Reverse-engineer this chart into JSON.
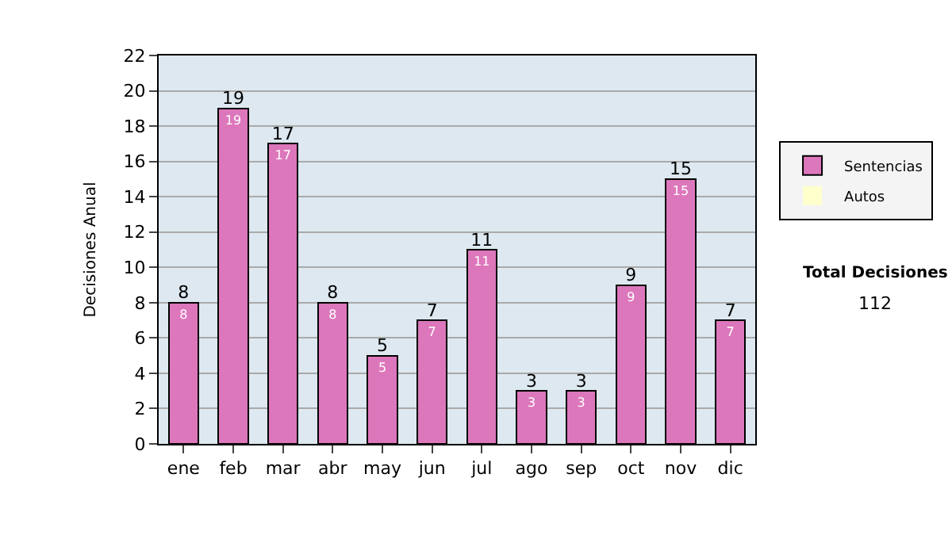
{
  "chart_data": {
    "type": "bar",
    "stacked": true,
    "ylabel": "Decisiones Anual",
    "categories": [
      "ene",
      "feb",
      "mar",
      "abr",
      "may",
      "jun",
      "jul",
      "ago",
      "sep",
      "oct",
      "nov",
      "dic"
    ],
    "series": [
      {
        "name": "Sentencias",
        "color": "#dd77bb",
        "values": [
          8,
          19,
          17,
          8,
          5,
          7,
          11,
          3,
          3,
          9,
          15,
          7
        ],
        "value_labels": [
          "8",
          "19",
          "17",
          "8",
          "5",
          "7",
          "11",
          "3",
          "3",
          "9",
          "15",
          "7"
        ]
      },
      {
        "name": "Autos",
        "color": "#ffffcc",
        "values": [
          0,
          0,
          0,
          0,
          0,
          0,
          0,
          0,
          0,
          0,
          0,
          0
        ]
      }
    ],
    "totals": [
      "8",
      "19",
      "17",
      "8",
      "5",
      "7",
      "11",
      "3",
      "3",
      "9",
      "15",
      "7"
    ],
    "ylim": [
      0,
      22
    ],
    "yticks": [
      0,
      2,
      4,
      6,
      8,
      10,
      12,
      14,
      16,
      18,
      20,
      22
    ],
    "grid": "y",
    "legend": "right",
    "annotations": [
      "Total Decisiones",
      "112"
    ]
  }
}
